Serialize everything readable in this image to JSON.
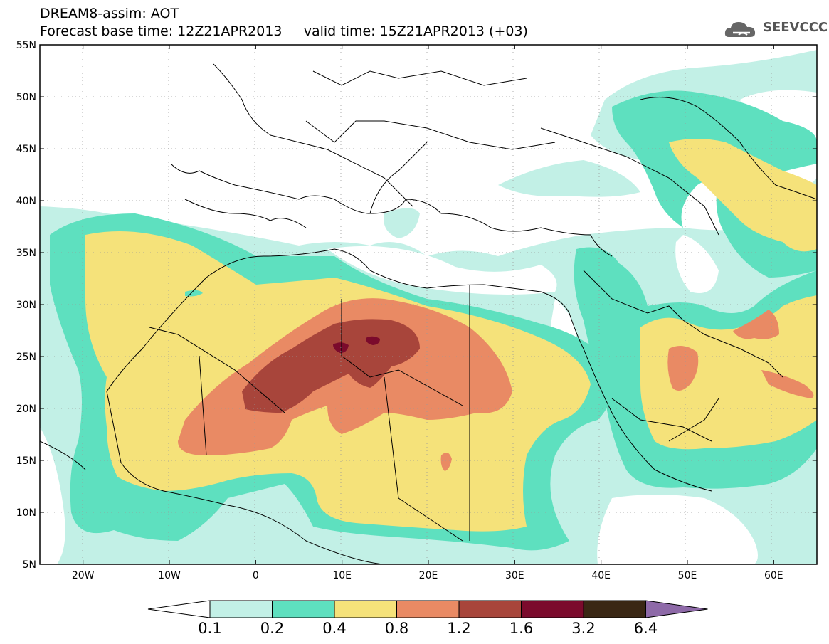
{
  "title": {
    "line1": "DREAM8-assim: AOT",
    "line2": "Forecast base time: 12Z21APR2013     valid time: 15Z21APR2013 (+03)"
  },
  "logo": {
    "text": "SEEVCCC",
    "icon": "cloud-icon"
  },
  "map": {
    "lon_range": [
      -25,
      65
    ],
    "lat_range": [
      5,
      55
    ],
    "lon_ticks": [
      "20W",
      "10W",
      "0",
      "10E",
      "20E",
      "30E",
      "40E",
      "50E",
      "60E"
    ],
    "lat_ticks": [
      "5N",
      "10N",
      "15N",
      "20N",
      "25N",
      "30N",
      "35N",
      "40N",
      "45N",
      "50N",
      "55N"
    ],
    "grid": "dotted"
  },
  "colorbar": {
    "levels": [
      "0.1",
      "0.2",
      "0.4",
      "0.8",
      "1.2",
      "1.6",
      "3.2",
      "6.4"
    ],
    "colors": {
      "below": "#ffffff",
      "c1": "#c2f0e6",
      "c2": "#5ee0bf",
      "c3": "#f5e27a",
      "c4": "#e98a64",
      "c5": "#a8453b",
      "c6": "#7b0a2c",
      "c7": "#3a2714",
      "above": "#8e6aa8"
    }
  }
}
